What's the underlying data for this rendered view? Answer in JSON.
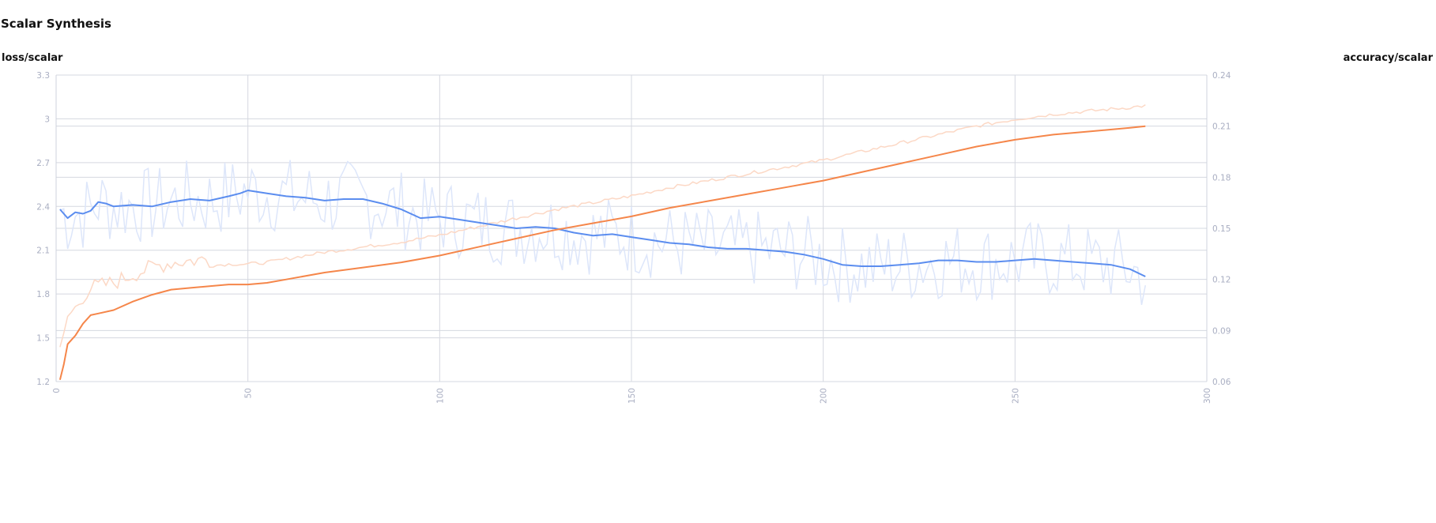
{
  "title": "Scalar Synthesis",
  "chart_data": {
    "type": "line",
    "title": "Scalar Synthesis",
    "left_axis_label": "loss/scalar",
    "right_axis_label": "accuracy/scalar",
    "xlim": [
      0,
      300
    ],
    "x_ticks": [
      0,
      50,
      100,
      150,
      200,
      250,
      300
    ],
    "left_ylim": [
      1.2,
      3.3
    ],
    "left_ticks": [
      "1.2",
      "1.5",
      "1.8",
      "2.1",
      "2.4",
      "2.7",
      "3",
      "3.3"
    ],
    "right_ylim": [
      0.06,
      0.24
    ],
    "right_ticks": [
      "0.06",
      "0.09",
      "0.12",
      "0.15",
      "0.18",
      "0.21",
      "0.24"
    ],
    "grid": true,
    "colors": {
      "loss_smoothed": "#5b8def",
      "loss_raw": "#dde6fa",
      "accuracy_smoothed": "#f5864a",
      "accuracy_raw": "#fcd8c5",
      "grid": "#d5d8e0",
      "tick": "#a9aec2"
    },
    "series": [
      {
        "axis": "left",
        "x": [
          1,
          3,
          5,
          7,
          9,
          11,
          13,
          15,
          20,
          25,
          30,
          35,
          40,
          45,
          48,
          50,
          55,
          60,
          65,
          70,
          75,
          80,
          85,
          90,
          95,
          100,
          105,
          110,
          115,
          120,
          125,
          130,
          135,
          140,
          145,
          150,
          155,
          160,
          165,
          170,
          175,
          180,
          185,
          190,
          195,
          200,
          205,
          210,
          215,
          220,
          225,
          230,
          235,
          240,
          245,
          250,
          255,
          260,
          265,
          270,
          275,
          280,
          284
        ],
        "y": [
          2.38,
          2.32,
          2.36,
          2.35,
          2.37,
          2.43,
          2.42,
          2.4,
          2.41,
          2.4,
          2.43,
          2.45,
          2.44,
          2.47,
          2.49,
          2.51,
          2.49,
          2.47,
          2.46,
          2.44,
          2.45,
          2.45,
          2.42,
          2.38,
          2.32,
          2.33,
          2.31,
          2.29,
          2.27,
          2.25,
          2.26,
          2.25,
          2.22,
          2.2,
          2.21,
          2.19,
          2.17,
          2.15,
          2.14,
          2.12,
          2.11,
          2.11,
          2.1,
          2.09,
          2.07,
          2.04,
          2.0,
          1.99,
          1.99,
          2.0,
          2.01,
          2.03,
          2.03,
          2.02,
          2.02,
          2.03,
          2.04,
          2.03,
          2.02,
          2.01,
          2.0,
          1.97,
          1.92
        ]
      },
      {
        "axis": "right",
        "x": [
          1,
          2,
          3,
          5,
          7,
          9,
          11,
          15,
          20,
          25,
          30,
          35,
          40,
          45,
          50,
          55,
          60,
          70,
          80,
          90,
          100,
          110,
          120,
          130,
          140,
          150,
          160,
          170,
          180,
          190,
          200,
          210,
          220,
          230,
          240,
          250,
          260,
          270,
          280,
          284
        ],
        "y": [
          0.061,
          0.07,
          0.082,
          0.087,
          0.094,
          0.099,
          0.1,
          0.102,
          0.107,
          0.111,
          0.114,
          0.115,
          0.116,
          0.117,
          0.117,
          0.118,
          0.12,
          0.124,
          0.127,
          0.13,
          0.134,
          0.139,
          0.144,
          0.149,
          0.153,
          0.157,
          0.162,
          0.166,
          0.17,
          0.174,
          0.178,
          0.183,
          0.188,
          0.193,
          0.198,
          0.202,
          0.205,
          0.207,
          0.209,
          0.21
        ]
      }
    ]
  }
}
